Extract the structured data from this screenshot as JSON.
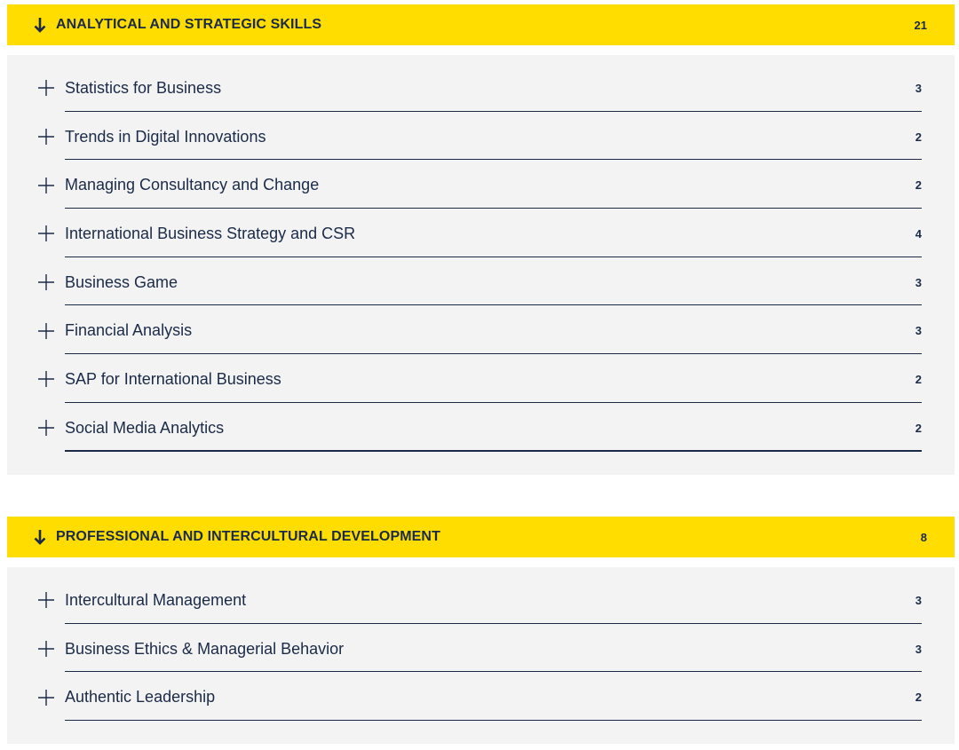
{
  "colors": {
    "accent": "#ffdd00",
    "text": "#1b2a47",
    "panel": "#f3f3f3"
  },
  "sections": [
    {
      "icon": "arrow-down-icon",
      "title": "ANALYTICAL AND STRATEGIC SKILLS",
      "credits": "21",
      "courses": [
        {
          "icon": "plus-icon",
          "name": "Statistics for Business",
          "credits": "3"
        },
        {
          "icon": "plus-icon",
          "name": "Trends in Digital Innovations",
          "credits": "2"
        },
        {
          "icon": "plus-icon",
          "name": "Managing Consultancy and Change",
          "credits": "2"
        },
        {
          "icon": "plus-icon",
          "name": "International Business Strategy and CSR",
          "credits": "4"
        },
        {
          "icon": "plus-icon",
          "name": "Business Game",
          "credits": "3"
        },
        {
          "icon": "plus-icon",
          "name": "Financial Analysis",
          "credits": "3"
        },
        {
          "icon": "plus-icon",
          "name": "SAP for International Business",
          "credits": "2"
        },
        {
          "icon": "plus-icon",
          "name": "Social Media Analytics",
          "credits": "2"
        }
      ]
    },
    {
      "icon": "arrow-down-icon",
      "title": "PROFESSIONAL AND INTERCULTURAL DEVELOPMENT",
      "credits": "8",
      "courses": [
        {
          "icon": "plus-icon",
          "name": "Intercultural Management",
          "credits": "3"
        },
        {
          "icon": "plus-icon",
          "name": "Business Ethics & Managerial Behavior",
          "credits": "3"
        },
        {
          "icon": "plus-icon",
          "name": "Authentic Leadership",
          "credits": "2"
        }
      ]
    }
  ]
}
